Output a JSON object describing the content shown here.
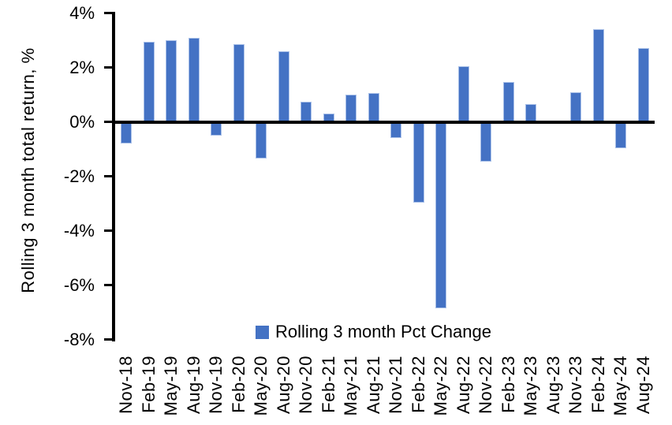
{
  "chart_data": {
    "type": "bar",
    "title": "",
    "ylabel": "Rolling 3 month total return, %",
    "xlabel": "",
    "legend": "Rolling 3 month Pct Change",
    "legend_position": "bottom-center-inside",
    "grid": false,
    "ylim": [
      -8,
      4
    ],
    "ytick_values": [
      4,
      2,
      0,
      -2,
      -4,
      -6,
      -8
    ],
    "ytick_labels": [
      "4%",
      "2%",
      "0%",
      "-2%",
      "-4%",
      "-6%",
      "-8%"
    ],
    "categories": [
      "Nov-18",
      "Feb-19",
      "May-19",
      "Aug-19",
      "Nov-19",
      "Feb-20",
      "May-20",
      "Aug-20",
      "Nov-20",
      "Feb-21",
      "May-21",
      "Aug-21",
      "Nov-21",
      "Feb-22",
      "May-22",
      "Aug-22",
      "Nov-22",
      "Feb-23",
      "May-23",
      "Aug-23",
      "Nov-23",
      "Feb-24",
      "May-24",
      "Aug-24"
    ],
    "values": [
      -0.75,
      2.95,
      3.0,
      3.1,
      -0.45,
      2.85,
      -1.3,
      2.6,
      0.75,
      0.3,
      1.0,
      1.05,
      -0.55,
      -2.9,
      -6.8,
      2.05,
      -1.4,
      1.45,
      0.65,
      0.0,
      1.1,
      3.4,
      -0.9,
      2.7
    ],
    "colors": {
      "bar_fill": "#4472C4",
      "bar_border": "#A9C0E8",
      "axis": "#000000",
      "text": "#000000"
    }
  }
}
